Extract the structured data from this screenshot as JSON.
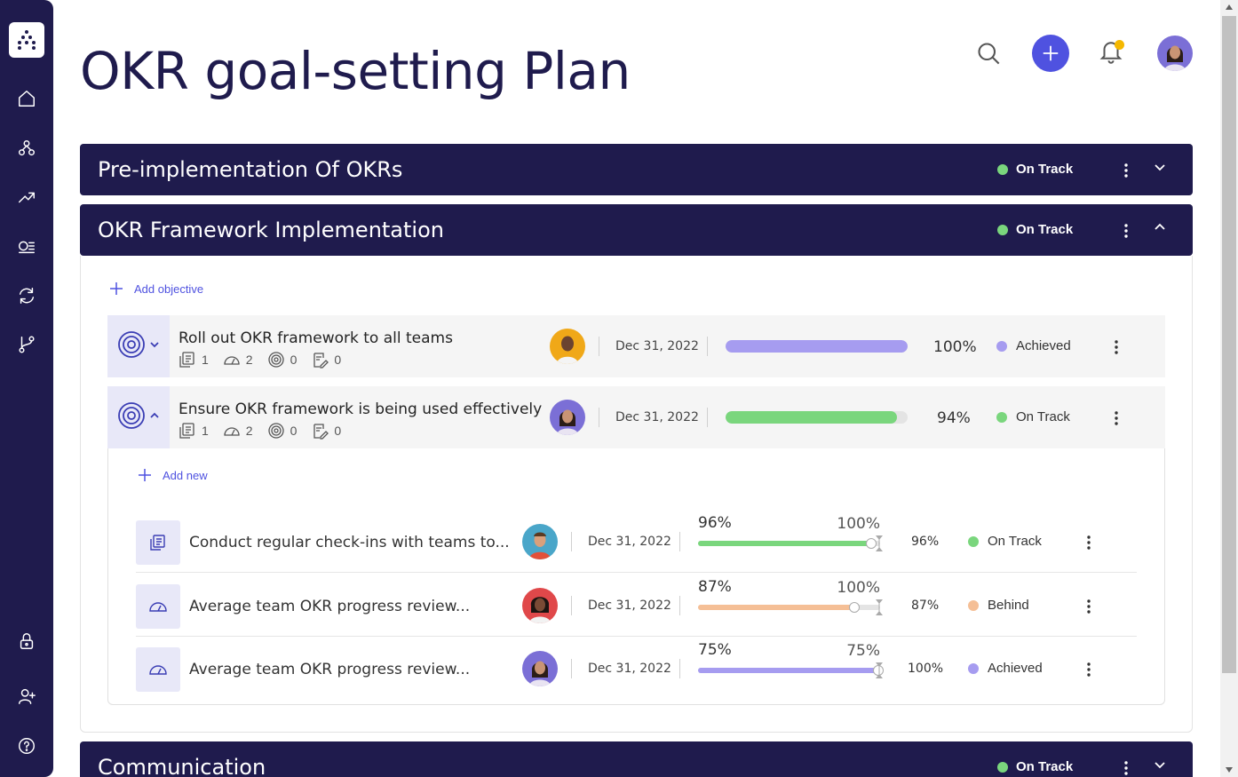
{
  "page": {
    "title": "OKR goal-setting Plan"
  },
  "sidebar": {
    "items": [
      {
        "name": "home-icon"
      },
      {
        "name": "hierarchy-icon"
      },
      {
        "name": "trending-icon"
      },
      {
        "name": "list-icon"
      },
      {
        "name": "refresh-icon"
      },
      {
        "name": "branch-icon"
      },
      {
        "name": "lock-icon"
      },
      {
        "name": "add-user-icon"
      },
      {
        "name": "help-icon"
      }
    ]
  },
  "colors": {
    "navy": "#1f1b4d",
    "accent": "#4f52e0",
    "on_track": "#7ad67d",
    "achieved": "#a69cf0",
    "behind": "#f5bf96"
  },
  "sections": [
    {
      "title": "Pre-implementation Of OKRs",
      "status": "On Track",
      "expanded": false
    },
    {
      "title": "OKR Framework Implementation",
      "status": "On Track",
      "expanded": true
    },
    {
      "title": "Communication",
      "status": "On Track",
      "expanded": false
    }
  ],
  "add_objective_label": "Add objective",
  "objectives": [
    {
      "title": "Roll out OKR framework to all teams",
      "counts": [
        "1",
        "2",
        "0",
        "0"
      ],
      "date": "Dec 31, 2022",
      "progress": 100,
      "progress_label": "100%",
      "status": "Achieved",
      "status_color": "#a69cf0"
    },
    {
      "title": "Ensure OKR framework is being used effectively",
      "counts": [
        "1",
        "2",
        "0",
        "0"
      ],
      "date": "Dec 31, 2022",
      "progress": 94,
      "progress_label": "94%",
      "status": "On Track",
      "status_color": "#7ad67d"
    }
  ],
  "add_new_label": "Add new",
  "key_results": [
    {
      "title": "Conduct regular check-ins with teams to...",
      "date": "Dec 31, 2022",
      "current_label": "96%",
      "target_label": "100%",
      "progress": 96,
      "pct_label": "96%",
      "status": "On Track",
      "status_color": "#7ad67d"
    },
    {
      "title": "Average team OKR progress review...",
      "date": "Dec 31, 2022",
      "current_label": "87%",
      "target_label": "100%",
      "progress": 87,
      "pct_label": "87%",
      "status": "Behind",
      "status_color": "#f5bf96"
    },
    {
      "title": "Average team OKR progress review...",
      "date": "Dec 31, 2022",
      "current_label": "75%",
      "target_label": "75%",
      "progress": 100,
      "pct_label": "100%",
      "status": "Achieved",
      "status_color": "#a69cf0"
    }
  ]
}
